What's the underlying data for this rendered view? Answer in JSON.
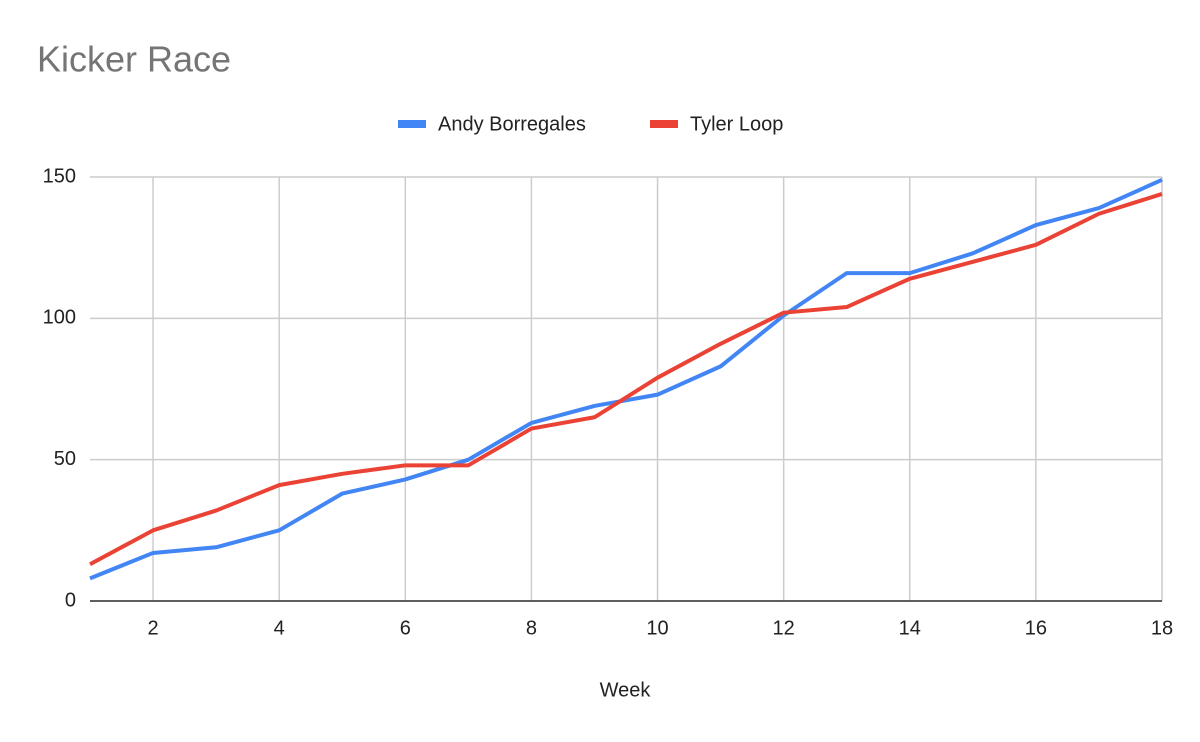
{
  "chart_data": {
    "type": "line",
    "title": "Kicker Race",
    "x_label": "Week",
    "x": [
      1,
      2,
      3,
      4,
      5,
      6,
      7,
      8,
      9,
      10,
      11,
      12,
      13,
      14,
      15,
      16,
      17,
      18
    ],
    "series": [
      {
        "name": "Andy Borregales",
        "color": "#4285f4",
        "values": [
          8,
          17,
          19,
          25,
          38,
          43,
          50,
          63,
          69,
          73,
          83,
          101,
          116,
          116,
          123,
          133,
          139,
          149
        ]
      },
      {
        "name": "Tyler Loop",
        "color": "#ea4335",
        "values": [
          13,
          25,
          32,
          41,
          45,
          48,
          48,
          61,
          65,
          79,
          91,
          102,
          104,
          114,
          120,
          126,
          137,
          144
        ]
      }
    ],
    "xlim": [
      1,
      18
    ],
    "xticks": [
      2,
      4,
      6,
      8,
      10,
      12,
      14,
      16,
      18
    ],
    "ylim": [
      0,
      150
    ],
    "yticks": [
      0,
      50,
      100,
      150
    ],
    "grid": true,
    "legend": "top"
  }
}
